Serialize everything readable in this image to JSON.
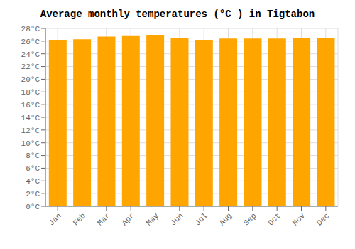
{
  "chart_data": {
    "type": "bar",
    "title": "Average monthly temperatures (°C ) in Tigtabon",
    "categories": [
      "Jan",
      "Feb",
      "Mar",
      "Apr",
      "May",
      "Jun",
      "Jul",
      "Aug",
      "Sep",
      "Oct",
      "Nov",
      "Dec"
    ],
    "values": [
      26.2,
      26.3,
      26.7,
      26.9,
      27.0,
      26.5,
      26.2,
      26.4,
      26.4,
      26.4,
      26.5,
      26.5
    ],
    "color": "#FFA500",
    "ylim": [
      0,
      28
    ],
    "yticks": [
      {
        "value": 0,
        "label": "0°C"
      },
      {
        "value": 2,
        "label": "2°C"
      },
      {
        "value": 4,
        "label": "4°C"
      },
      {
        "value": 6,
        "label": "6°C"
      },
      {
        "value": 8,
        "label": "8°C"
      },
      {
        "value": 10,
        "label": "10°C"
      },
      {
        "value": 12,
        "label": "12°C"
      },
      {
        "value": 14,
        "label": "14°C"
      },
      {
        "value": 16,
        "label": "16°C"
      },
      {
        "value": 18,
        "label": "18°C"
      },
      {
        "value": 20,
        "label": "20°C"
      },
      {
        "value": 22,
        "label": "22°C"
      },
      {
        "value": 24,
        "label": "24°C"
      },
      {
        "value": 26,
        "label": "26°C"
      },
      {
        "value": 28,
        "label": "28°C"
      }
    ],
    "grid": true
  }
}
